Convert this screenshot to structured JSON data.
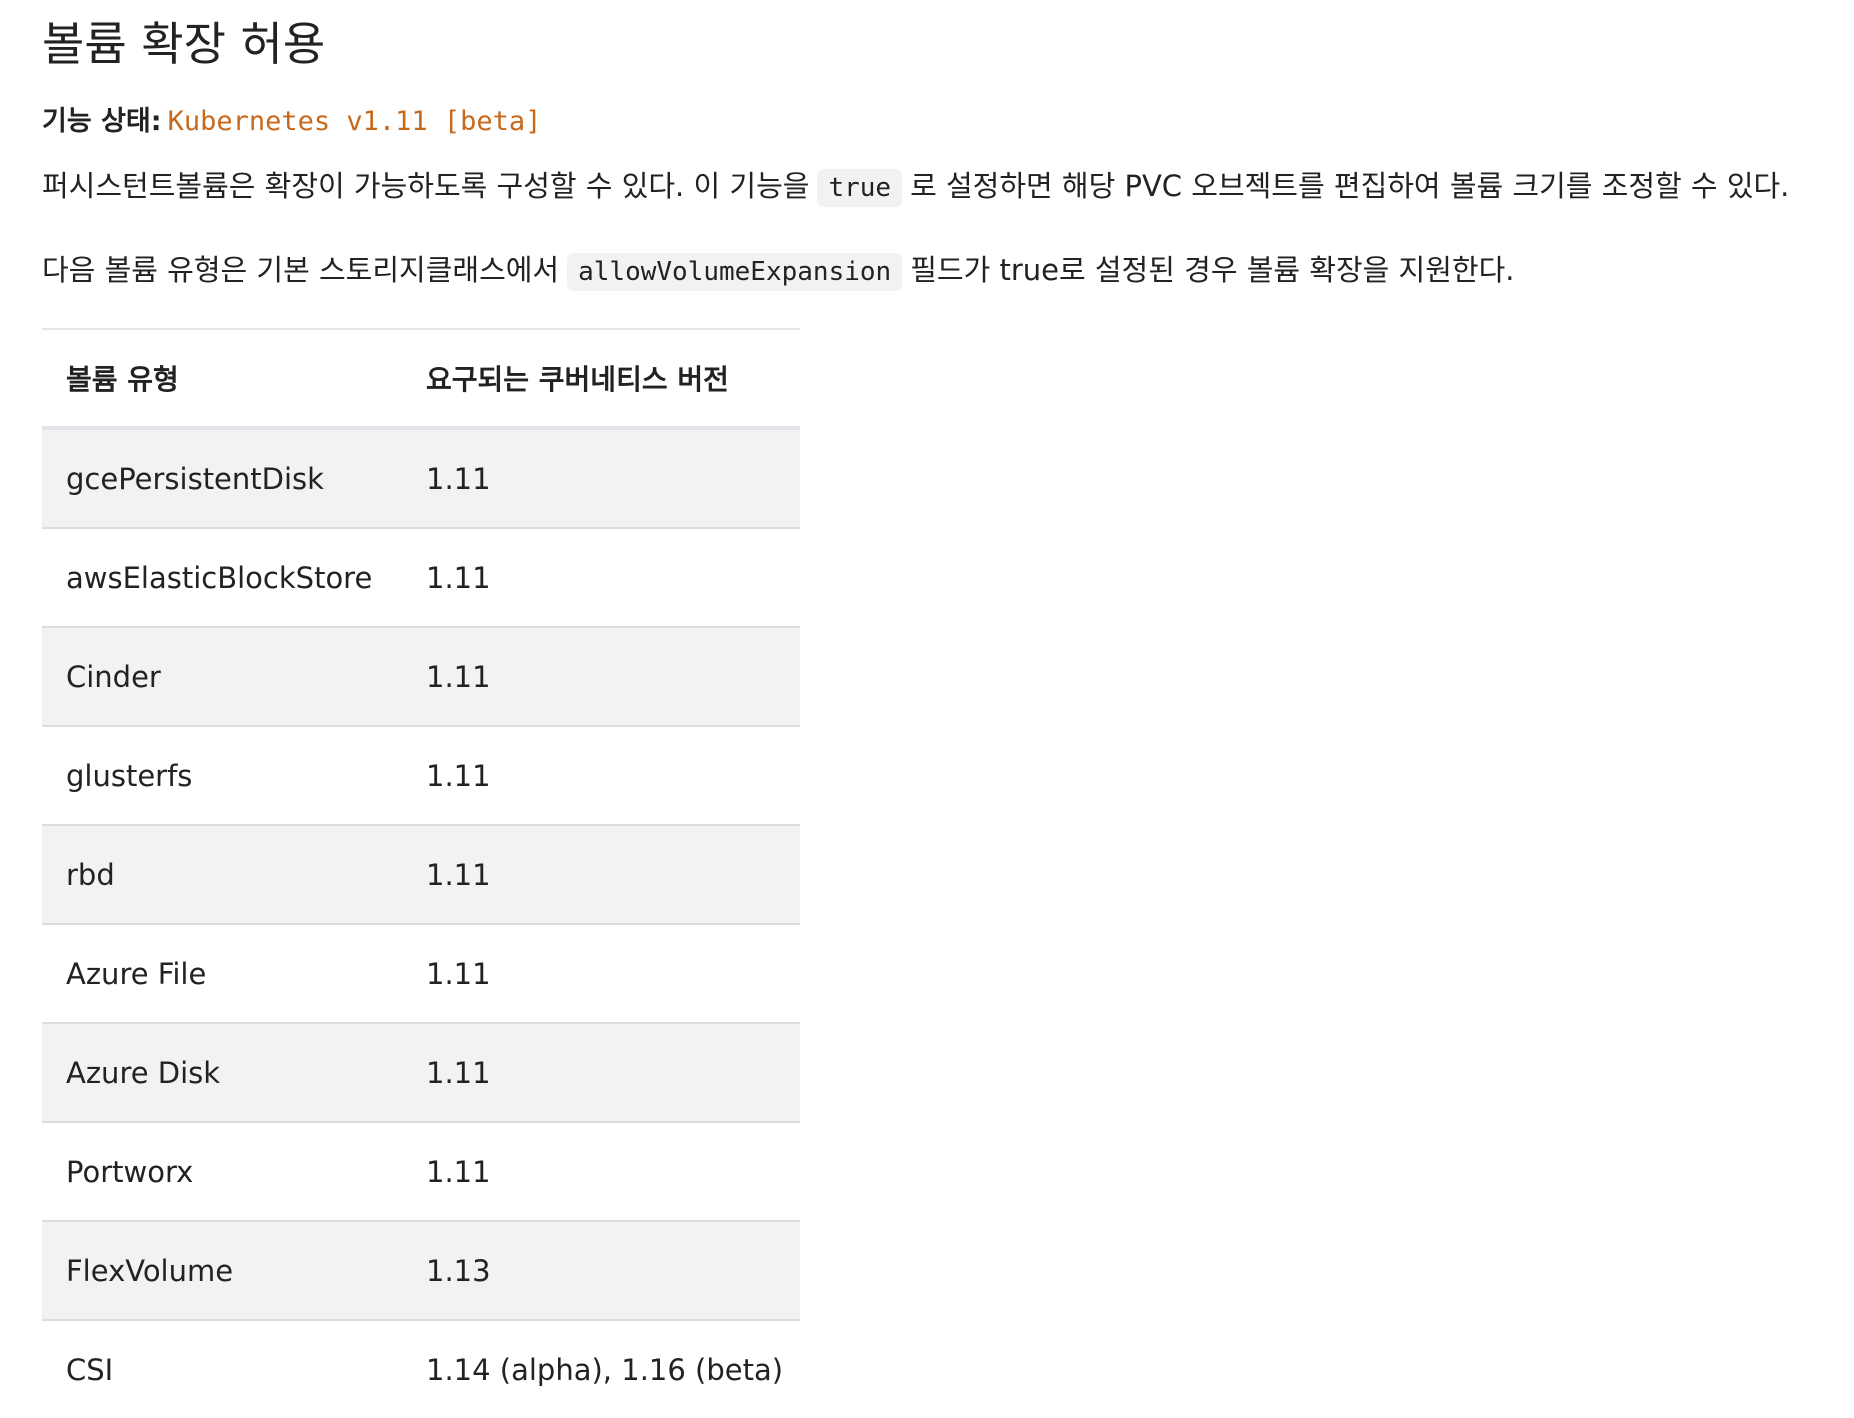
{
  "title": "볼륨 확장 허용",
  "feature_state": {
    "label": "기능 상태:",
    "value": "Kubernetes v1.11 [beta]"
  },
  "paragraph1": {
    "before": "퍼시스턴트볼륨은 확장이 가능하도록 구성할 수 있다. 이 기능을",
    "code": "true",
    "after": "로 설정하면 해당 PVC 오브젝트를 편집하여 볼륨 크기를 조정할 수 있다."
  },
  "paragraph2": {
    "before": "다음 볼륨 유형은 기본 스토리지클래스에서",
    "code": "allowVolumeExpansion",
    "after": "필드가 true로 설정된 경우 볼륨 확장을 지원한다."
  },
  "table": {
    "headers": [
      "볼륨 유형",
      "요구되는 쿠버네티스 버전"
    ],
    "rows": [
      [
        "gcePersistentDisk",
        "1.11"
      ],
      [
        "awsElasticBlockStore",
        "1.11"
      ],
      [
        "Cinder",
        "1.11"
      ],
      [
        "glusterfs",
        "1.11"
      ],
      [
        "rbd",
        "1.11"
      ],
      [
        "Azure File",
        "1.11"
      ],
      [
        "Azure Disk",
        "1.11"
      ],
      [
        "Portworx",
        "1.11"
      ],
      [
        "FlexVolume",
        "1.13"
      ],
      [
        "CSI",
        "1.14 (alpha), 1.16 (beta)"
      ]
    ]
  }
}
